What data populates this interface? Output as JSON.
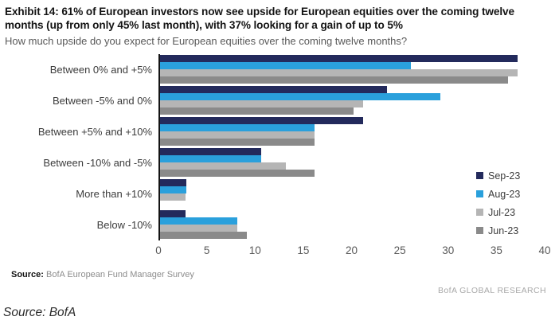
{
  "header": {
    "title": "Exhibit 14: 61% of European investors now see upside for European equities over the coming twelve months (up from only 45% last month), with 37% looking for a gain of up to 5%",
    "subtitle": "How much upside do you expect for European equities over the coming twelve months?"
  },
  "chart_data": {
    "type": "bar",
    "orientation": "horizontal",
    "title": "How much upside do you expect for European equities over the coming twelve months?",
    "categories": [
      "Between 0% and +5%",
      "Between -5% and 0%",
      "Between +5% and +10%",
      "Between -10% and -5%",
      "More than +10%",
      "Below -10%"
    ],
    "series": [
      {
        "name": "Sep-23",
        "color": "#232a5c",
        "values": [
          37,
          23.5,
          21,
          10.5,
          2.7,
          2.6
        ]
      },
      {
        "name": "Aug-23",
        "color": "#2aa0dc",
        "values": [
          26,
          29,
          16,
          10.5,
          2.7,
          8
        ]
      },
      {
        "name": "Jul-23",
        "color": "#b5b5b5",
        "values": [
          37,
          21,
          16,
          13,
          2.6,
          8
        ]
      },
      {
        "name": "Jun-23",
        "color": "#8a8a8a",
        "values": [
          36,
          20,
          16,
          16,
          0,
          9
        ]
      }
    ],
    "xlim": [
      0,
      40
    ],
    "xticks": [
      0,
      5,
      10,
      15,
      20,
      25,
      30,
      35,
      40
    ],
    "xlabel": "",
    "ylabel": "",
    "grid": false,
    "legend_position": "right"
  },
  "footer": {
    "source_label": "Source:",
    "source_text": "BofA European Fund Manager Survey",
    "branding": "BofA GLOBAL RESEARCH"
  },
  "caption": "Source: BofA"
}
